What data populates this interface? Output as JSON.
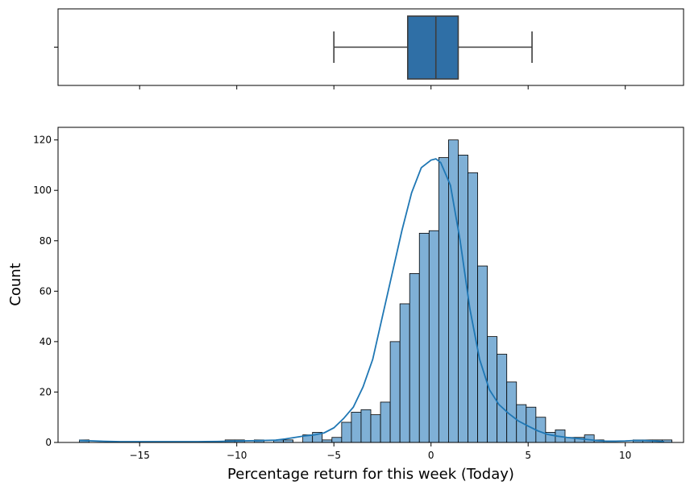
{
  "chart_data": [
    {
      "type": "boxplot",
      "orientation": "horizontal",
      "whisker_low": -5.0,
      "q1": -1.2,
      "median": 0.25,
      "q3": 1.4,
      "whisker_high": 5.2,
      "xlim": [
        -19.2,
        13.0
      ],
      "box_color": "#2f6fa6",
      "line_color": "#3d3d3d",
      "shared_x_ticks": [
        -15,
        -10,
        -5,
        0,
        5,
        10
      ]
    },
    {
      "type": "histogram",
      "xlabel": "Percentage return for this week (Today)",
      "ylabel": "Count",
      "xlim": [
        -19.2,
        13.0
      ],
      "ylim": [
        0,
        125
      ],
      "x_ticks": [
        -15,
        -10,
        -5,
        0,
        5,
        10
      ],
      "x_tick_labels": [
        "−15",
        "−10",
        "−5",
        "0",
        "5",
        "10"
      ],
      "y_ticks": [
        0,
        20,
        40,
        60,
        80,
        100,
        120
      ],
      "y_tick_labels": [
        "0",
        "20",
        "40",
        "60",
        "80",
        "100",
        "120"
      ],
      "bin_start": -18.1,
      "bin_width": 0.5,
      "counts": [
        1,
        0,
        0,
        0,
        0,
        0,
        0,
        0,
        0,
        0,
        0,
        0,
        0,
        0,
        0,
        1,
        1,
        0,
        1,
        0,
        1,
        1,
        0,
        3,
        4,
        1,
        2,
        8,
        12,
        13,
        11,
        16,
        40,
        55,
        67,
        83,
        84,
        113,
        120,
        114,
        107,
        70,
        42,
        35,
        24,
        15,
        14,
        10,
        4,
        5,
        2,
        2,
        3,
        1,
        0,
        0,
        0,
        1,
        1,
        1,
        1
      ],
      "bar_color": "#7fb0d6",
      "edge_color": "#000000",
      "kde_color": "#1f77b4",
      "kde": {
        "x": [
          -18.1,
          -17.0,
          -16.0,
          -15.0,
          -14.0,
          -13.0,
          -12.0,
          -11.0,
          -10.0,
          -9.0,
          -8.0,
          -7.5,
          -7.0,
          -6.5,
          -6.0,
          -5.5,
          -5.0,
          -4.5,
          -4.0,
          -3.5,
          -3.0,
          -2.5,
          -2.0,
          -1.5,
          -1.0,
          -0.5,
          0.0,
          0.25,
          0.5,
          1.0,
          1.5,
          2.0,
          2.5,
          3.0,
          3.5,
          4.0,
          4.5,
          5.0,
          5.5,
          6.0,
          6.5,
          7.0,
          7.5,
          8.0,
          8.5,
          9.0,
          9.5,
          10.0,
          10.5,
          11.0,
          11.5,
          12.0
        ],
        "y": [
          0.8,
          0.5,
          0.3,
          0.3,
          0.3,
          0.3,
          0.3,
          0.4,
          0.6,
          0.7,
          0.9,
          1.4,
          2.0,
          2.6,
          3.0,
          3.8,
          5.8,
          9.5,
          14.0,
          22.0,
          33.0,
          50.0,
          67.0,
          84.0,
          99.0,
          109.0,
          112.0,
          112.5,
          111.0,
          102.0,
          80.0,
          53.0,
          33.0,
          21.0,
          15.0,
          11.5,
          8.5,
          6.5,
          4.6,
          3.2,
          2.5,
          2.0,
          1.6,
          1.2,
          0.8,
          0.5,
          0.5,
          0.6,
          0.8,
          0.8,
          0.6,
          0.3
        ]
      }
    }
  ]
}
